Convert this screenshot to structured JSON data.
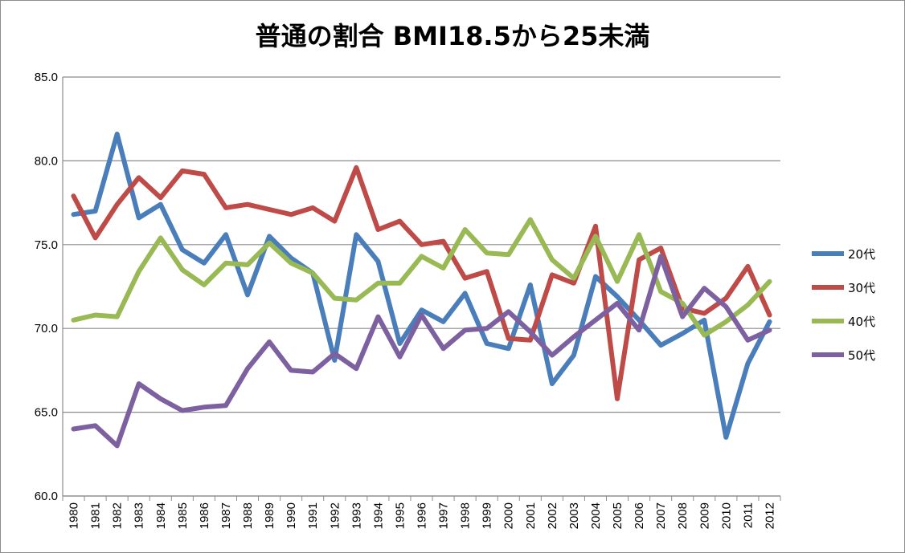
{
  "chart_data": {
    "type": "line",
    "title": "普通の割合 BMI18.5から25未満",
    "categories": [
      "1980",
      "1981",
      "1982",
      "1983",
      "1984",
      "1985",
      "1986",
      "1987",
      "1988",
      "1989",
      "1990",
      "1991",
      "1992",
      "1993",
      "1994",
      "1995",
      "1996",
      "1997",
      "1998",
      "1999",
      "2000",
      "2001",
      "2002",
      "2003",
      "2004",
      "2005",
      "2006",
      "2007",
      "2008",
      "2009",
      "2010",
      "2011",
      "2012"
    ],
    "ylim": [
      60,
      85
    ],
    "yticks": [
      "60.0",
      "65.0",
      "70.0",
      "75.0",
      "80.0",
      "85.0"
    ],
    "grid": true,
    "legend_position": "right",
    "series": [
      {
        "name": "20代",
        "color": "#4a7ebb",
        "values": [
          76.8,
          77.0,
          81.6,
          76.6,
          77.4,
          74.7,
          73.9,
          75.6,
          72.0,
          75.5,
          74.2,
          73.3,
          68.1,
          75.6,
          74.0,
          69.1,
          71.1,
          70.4,
          72.1,
          69.1,
          68.8,
          72.6,
          66.7,
          68.4,
          73.1,
          71.9,
          70.5,
          69.0,
          69.7,
          70.5,
          63.5,
          67.9,
          70.4
        ]
      },
      {
        "name": "30代",
        "color": "#be4b48",
        "values": [
          77.9,
          75.4,
          77.4,
          79.0,
          77.8,
          79.4,
          79.2,
          77.2,
          77.4,
          77.1,
          76.8,
          77.2,
          76.4,
          79.6,
          75.9,
          76.4,
          75.0,
          75.2,
          73.0,
          73.4,
          69.4,
          69.3,
          73.2,
          72.7,
          76.1,
          65.8,
          74.1,
          74.8,
          71.2,
          70.9,
          71.8,
          73.7,
          70.8
        ]
      },
      {
        "name": "40代",
        "color": "#98b954",
        "values": [
          70.5,
          70.8,
          70.7,
          73.4,
          75.4,
          73.5,
          72.6,
          73.9,
          73.8,
          75.1,
          73.9,
          73.3,
          71.8,
          71.7,
          72.7,
          72.7,
          74.3,
          73.6,
          75.9,
          74.5,
          74.4,
          76.5,
          74.1,
          73.0,
          75.5,
          72.8,
          75.6,
          72.2,
          71.5,
          69.6,
          70.4,
          71.4,
          72.8
        ]
      },
      {
        "name": "50代",
        "color": "#7d60a0",
        "values": [
          64.0,
          64.2,
          63.0,
          66.7,
          65.8,
          65.1,
          65.3,
          65.4,
          67.6,
          69.2,
          67.5,
          67.4,
          68.5,
          67.6,
          70.7,
          68.3,
          70.8,
          68.8,
          69.9,
          70.0,
          71.0,
          69.8,
          68.4,
          69.5,
          70.5,
          71.5,
          69.9,
          74.3,
          70.7,
          72.4,
          71.3,
          69.3,
          69.9
        ]
      }
    ]
  }
}
